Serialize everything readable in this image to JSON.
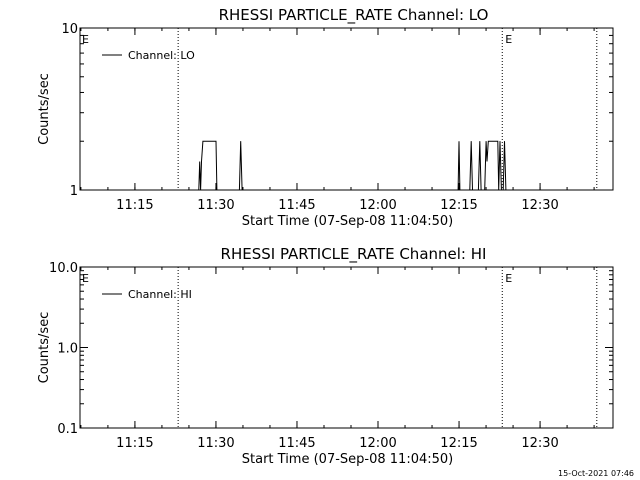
{
  "chart_data": [
    {
      "type": "line",
      "title": "RHESSI PARTICLE_RATE Channel: LO",
      "xlabel": "Start Time (07-Sep-08 11:04:50)",
      "ylabel": "Counts/sec",
      "y_scale": "log",
      "ylim": [
        1,
        10
      ],
      "y_ticks": [
        "1",
        "10"
      ],
      "xlim": [
        "11:04:50",
        "12:43:30"
      ],
      "x_ticks": [
        "11:15",
        "11:30",
        "11:45",
        "12:00",
        "12:15",
        "12:30"
      ],
      "legend": {
        "placement": "top-left",
        "entries": [
          "Channel: LO"
        ]
      },
      "event_lines": [
        {
          "time": "11:23:00",
          "label": ""
        },
        {
          "time": "12:23:00",
          "label": "E"
        },
        {
          "time": "12:40:30",
          "label": ""
        }
      ],
      "corner_label": "E",
      "series": [
        {
          "name": "Channel: LO",
          "points": [
            [
              "11:26:50",
              1
            ],
            [
              "11:27:00",
              1.5
            ],
            [
              "11:27:10",
              1
            ],
            [
              "11:27:20",
              1.5
            ],
            [
              "11:27:35",
              2
            ],
            [
              "11:30:00",
              2
            ],
            [
              "11:30:10",
              1
            ],
            [
              "11:34:20",
              1
            ],
            [
              "11:34:35",
              2
            ],
            [
              "11:34:50",
              1
            ],
            [
              "12:14:50",
              1
            ],
            [
              "12:15:00",
              2
            ],
            [
              "12:15:10",
              1
            ],
            [
              "12:17:00",
              1
            ],
            [
              "12:17:15",
              2
            ],
            [
              "12:17:30",
              1
            ],
            [
              "12:18:35",
              1
            ],
            [
              "12:18:50",
              2
            ],
            [
              "12:19:05",
              1
            ],
            [
              "12:19:45",
              1
            ],
            [
              "12:20:00",
              2
            ],
            [
              "12:20:10",
              1.5
            ],
            [
              "12:20:25",
              2
            ],
            [
              "12:22:10",
              2
            ],
            [
              "12:22:20",
              1
            ],
            [
              "12:22:35",
              2
            ],
            [
              "12:22:50",
              1
            ],
            [
              "12:23:10",
              1
            ],
            [
              "12:23:25",
              2
            ],
            [
              "12:23:40",
              1
            ]
          ]
        }
      ]
    },
    {
      "type": "line",
      "title": "RHESSI PARTICLE_RATE Channel: HI",
      "xlabel": "Start Time (07-Sep-08 11:04:50)",
      "ylabel": "Counts/sec",
      "y_scale": "log",
      "ylim": [
        0.1,
        10
      ],
      "y_ticks": [
        "0.1",
        "1.0",
        "10.0"
      ],
      "xlim": [
        "11:04:50",
        "12:43:30"
      ],
      "x_ticks": [
        "11:15",
        "11:30",
        "11:45",
        "12:00",
        "12:15",
        "12:30"
      ],
      "legend": {
        "placement": "top-left",
        "entries": [
          "Channel: HI"
        ]
      },
      "event_lines": [
        {
          "time": "11:23:00",
          "label": ""
        },
        {
          "time": "12:23:00",
          "label": "E"
        },
        {
          "time": "12:40:30",
          "label": ""
        }
      ],
      "corner_label": "E",
      "series": [
        {
          "name": "Channel: HI",
          "points": []
        }
      ]
    }
  ],
  "footer_timestamp": "15-Oct-2021 07:46"
}
